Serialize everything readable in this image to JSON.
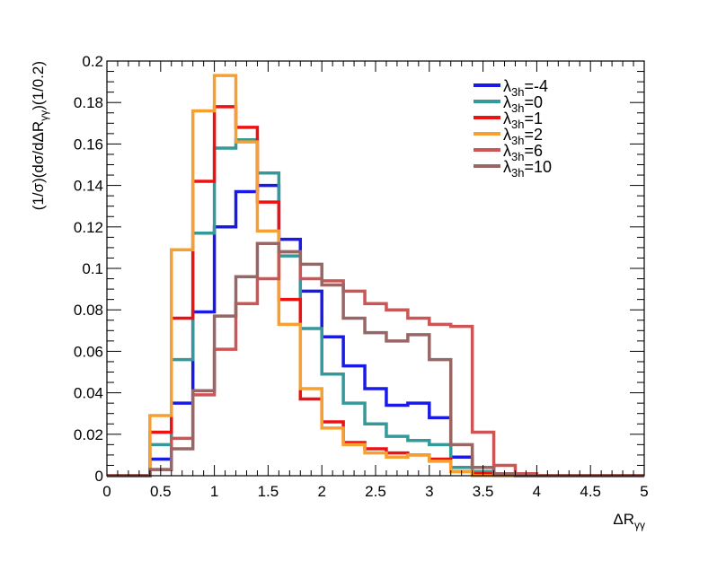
{
  "chart_data": {
    "type": "line",
    "style": "step-histogram",
    "bin_width": 0.2,
    "xlim": [
      0,
      5
    ],
    "ylim": [
      0,
      0.2
    ],
    "x_ticks": [
      "0",
      "0.5",
      "1",
      "1.5",
      "2",
      "2.5",
      "3",
      "3.5",
      "4",
      "4.5",
      "5"
    ],
    "y_ticks": [
      "0",
      "0.02",
      "0.04",
      "0.06",
      "0.08",
      "0.1",
      "0.12",
      "0.14",
      "0.16",
      "0.18",
      "0.2"
    ],
    "x_tick_values": [
      0,
      0.5,
      1,
      1.5,
      2,
      2.5,
      3,
      3.5,
      4,
      4.5,
      5
    ],
    "y_tick_values": [
      0,
      0.02,
      0.04,
      0.06,
      0.08,
      0.1,
      0.12,
      0.14,
      0.16,
      0.18,
      0.2
    ],
    "xlabel": {
      "main": "ΔR",
      "sub": "γγ"
    },
    "ylabel": {
      "part1": "(1/σ)(dσ/dΔR",
      "sub": "γγ",
      "part2": ")(1/0.2)"
    },
    "legend_position": "top-right",
    "series": [
      {
        "name": "λ3h=-4",
        "label_main": "λ",
        "label_sub": "3h",
        "label_rest": "=-4",
        "color": "#1a1ae6",
        "values": [
          0,
          0,
          0.008,
          0.035,
          0.079,
          0.12,
          0.137,
          0.14,
          0.114,
          0.089,
          0.067,
          0.053,
          0.042,
          0.034,
          0.035,
          0.028,
          0.009,
          0.004,
          0.001,
          0,
          0,
          0,
          0,
          0,
          0
        ]
      },
      {
        "name": "λ3h=0",
        "label_main": "λ",
        "label_sub": "3h",
        "label_rest": "=0",
        "color": "#339999",
        "values": [
          0,
          0,
          0.015,
          0.056,
          0.117,
          0.158,
          0.162,
          0.146,
          0.106,
          0.071,
          0.049,
          0.035,
          0.025,
          0.019,
          0.017,
          0.015,
          0.004,
          0.002,
          0.001,
          0,
          0,
          0,
          0,
          0,
          0
        ]
      },
      {
        "name": "λ3h=1",
        "label_main": "λ",
        "label_sub": "3h",
        "label_rest": "=1",
        "color": "#ee1111",
        "values": [
          0,
          0,
          0.021,
          0.076,
          0.142,
          0.178,
          0.168,
          0.132,
          0.085,
          0.037,
          0.026,
          0.016,
          0.013,
          0.011,
          0.01,
          0.008,
          0.002,
          0.001,
          0,
          0,
          0,
          0,
          0,
          0,
          0
        ]
      },
      {
        "name": "λ3h=2",
        "label_main": "λ",
        "label_sub": "3h",
        "label_rest": "=2",
        "color": "#f5a030",
        "values": [
          0,
          0,
          0.029,
          0.109,
          0.176,
          0.193,
          0.161,
          0.118,
          0.073,
          0.042,
          0.023,
          0.015,
          0.011,
          0.009,
          0.01,
          0.007,
          0.002,
          0,
          0,
          0,
          0,
          0,
          0,
          0,
          0
        ]
      },
      {
        "name": "λ3h=6",
        "label_main": "λ",
        "label_sub": "3h",
        "label_rest": "=6",
        "color": "#cc5555",
        "values": [
          0,
          0,
          0.003,
          0.018,
          0.039,
          0.061,
          0.083,
          0.095,
          0.108,
          0.095,
          0.094,
          0.089,
          0.083,
          0.08,
          0.076,
          0.073,
          0.072,
          0.021,
          0.005,
          0.001,
          0,
          0,
          0,
          0,
          0
        ]
      },
      {
        "name": "λ3h=10",
        "label_main": "λ",
        "label_sub": "3h",
        "label_rest": "=10",
        "color": "#996666",
        "values": [
          0,
          0,
          0.003,
          0.013,
          0.041,
          0.077,
          0.096,
          0.112,
          0.108,
          0.102,
          0.092,
          0.076,
          0.069,
          0.065,
          0.068,
          0.056,
          0.015,
          0.004,
          0.001,
          0,
          0,
          0,
          0,
          0,
          0
        ]
      }
    ]
  }
}
